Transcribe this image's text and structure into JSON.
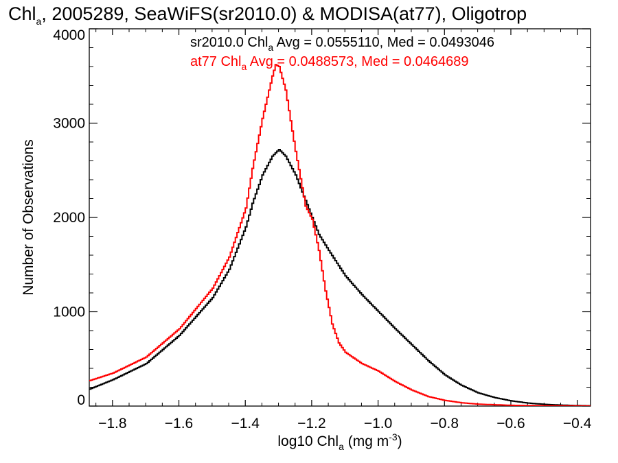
{
  "chart_data": {
    "type": "line",
    "title_parts": [
      "Chl",
      "a",
      ", 2005289, SeaWiFS(sr2010.0) & MODISA(at77), Oligotrop"
    ],
    "xlabel_parts": [
      "log10 Chl",
      "a",
      " (mg m",
      "-3",
      ")"
    ],
    "ylabel": "Number of Observations",
    "xlim": [
      -1.87,
      -0.36
    ],
    "ylim": [
      0,
      4000
    ],
    "xticks": [
      -1.8,
      -1.6,
      -1.4,
      -1.2,
      -1.0,
      -0.8,
      -0.6,
      -0.4
    ],
    "xtick_labels": [
      "−1.8",
      "−1.6",
      "−1.4",
      "−1.2",
      "−1.0",
      "−0.8",
      "−0.6",
      "−0.4"
    ],
    "yticks": [
      0,
      1000,
      2000,
      3000,
      4000
    ],
    "ytick_labels": [
      "0",
      "1000",
      "2000",
      "3000",
      "4000"
    ],
    "grid": false,
    "legend": [
      {
        "parts": [
          "sr2010.0 Chl",
          "a",
          " Avg = 0.0555110, Med = 0.0493046"
        ],
        "color": "#000000"
      },
      {
        "parts": [
          "at77 Chl",
          "a",
          " Avg = 0.0488573, Med = 0.0464689"
        ],
        "color": "#ff0000"
      }
    ],
    "series": [
      {
        "name": "sr2010.0",
        "color": "#000000",
        "x": [
          -1.87,
          -1.8,
          -1.7,
          -1.6,
          -1.5,
          -1.45,
          -1.4,
          -1.38,
          -1.35,
          -1.32,
          -1.3,
          -1.28,
          -1.25,
          -1.22,
          -1.2,
          -1.18,
          -1.15,
          -1.1,
          -1.05,
          -1.0,
          -0.95,
          -0.9,
          -0.85,
          -0.8,
          -0.75,
          -0.7,
          -0.65,
          -0.6,
          -0.55,
          -0.5,
          -0.45,
          -0.4,
          -0.36
        ],
        "y": [
          180,
          280,
          450,
          750,
          1150,
          1450,
          1900,
          2150,
          2450,
          2650,
          2720,
          2650,
          2450,
          2180,
          2000,
          1820,
          1650,
          1380,
          1180,
          1000,
          820,
          650,
          480,
          330,
          220,
          140,
          90,
          55,
          32,
          18,
          10,
          5,
          3
        ]
      },
      {
        "name": "at77",
        "color": "#ff0000",
        "x": [
          -1.87,
          -1.8,
          -1.7,
          -1.6,
          -1.5,
          -1.45,
          -1.4,
          -1.38,
          -1.35,
          -1.32,
          -1.31,
          -1.3,
          -1.28,
          -1.25,
          -1.22,
          -1.2,
          -1.18,
          -1.16,
          -1.14,
          -1.12,
          -1.1,
          -1.05,
          -1.0,
          -0.95,
          -0.9,
          -0.85,
          -0.8,
          -0.75,
          -0.7,
          -0.6,
          -0.5,
          -0.4,
          -0.36
        ],
        "y": [
          270,
          350,
          520,
          820,
          1250,
          1580,
          2100,
          2520,
          3050,
          3500,
          3620,
          3600,
          3350,
          2700,
          2120,
          1980,
          1650,
          1220,
          870,
          670,
          570,
          450,
          370,
          260,
          170,
          100,
          60,
          35,
          20,
          8,
          3,
          1,
          0
        ]
      }
    ]
  }
}
